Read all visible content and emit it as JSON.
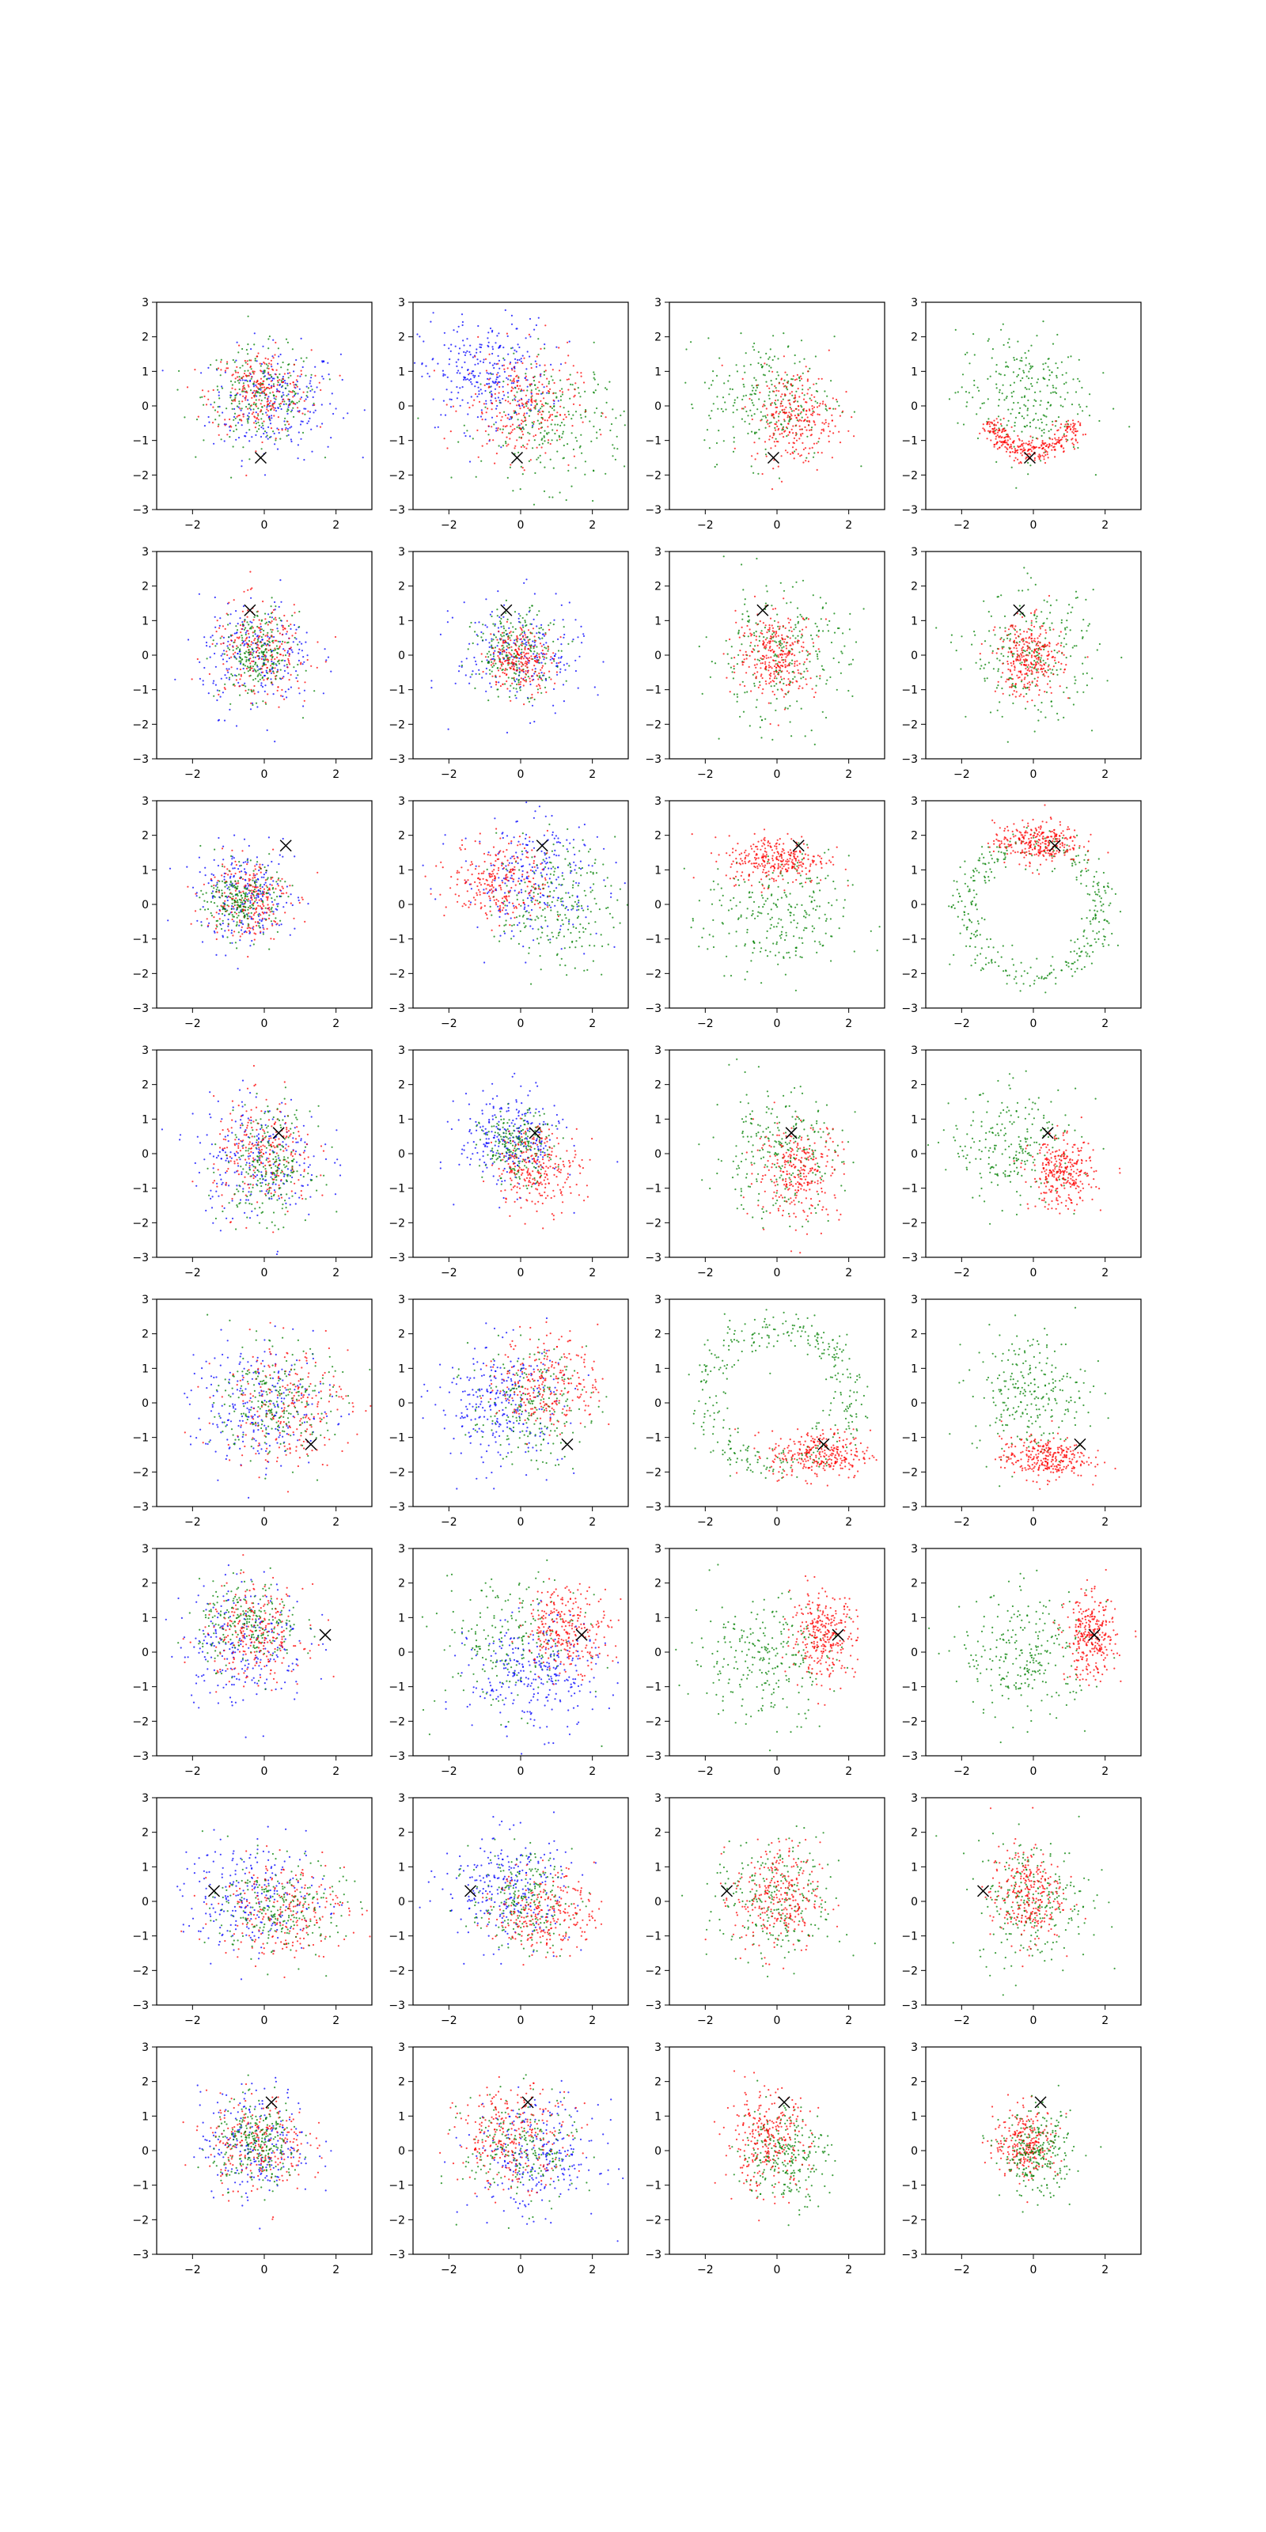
{
  "chart_data": {
    "type": "scatter",
    "rows": 8,
    "cols": 4,
    "xlim": [
      -3,
      3
    ],
    "ylim": [
      -3,
      3
    ],
    "xticks": [
      "−2",
      "0",
      "2"
    ],
    "yticks": [
      "3",
      "2",
      "1",
      "0",
      "−1",
      "−2",
      "−3"
    ],
    "grid": false,
    "legend": "none",
    "colors": {
      "blue": "#0000ff",
      "red": "#ff0000",
      "green": "#008000",
      "marker": "#000000"
    },
    "marker_symbol": "x",
    "marker_points": [
      [
        -0.1,
        -1.5
      ],
      [
        -0.4,
        1.3
      ],
      [
        0.6,
        1.7
      ],
      [
        0.4,
        0.6
      ],
      [
        1.3,
        -1.2
      ],
      [
        1.7,
        0.5
      ],
      [
        -1.4,
        0.3
      ],
      [
        0.2,
        1.4
      ]
    ],
    "panels": [
      {
        "clouds": [
          {
            "color": "blue",
            "shape": "disc",
            "cx": 0.3,
            "cy": 0.1,
            "sx": 0.9,
            "sy": 0.8,
            "n": 240
          },
          {
            "color": "green",
            "shape": "disc",
            "cx": -0.1,
            "cy": 0.3,
            "sx": 0.8,
            "sy": 0.7,
            "n": 240
          },
          {
            "color": "red",
            "shape": "disc",
            "cx": -0.1,
            "cy": 0.4,
            "sx": 0.7,
            "sy": 0.6,
            "n": 240
          }
        ]
      },
      {
        "clouds": [
          {
            "color": "blue",
            "shape": "disc",
            "cx": -1.0,
            "cy": 0.9,
            "sx": 0.9,
            "sy": 0.8,
            "n": 300
          },
          {
            "color": "green",
            "shape": "disc",
            "cx": 0.9,
            "cy": -0.5,
            "sx": 1.0,
            "sy": 0.9,
            "n": 260
          },
          {
            "color": "red",
            "shape": "disc",
            "cx": 0.0,
            "cy": 0.0,
            "sx": 0.8,
            "sy": 0.8,
            "n": 260
          }
        ]
      },
      {
        "clouds": [
          {
            "color": "green",
            "shape": "disc",
            "cx": -0.2,
            "cy": 0.2,
            "sx": 0.9,
            "sy": 0.9,
            "n": 260
          },
          {
            "color": "red",
            "shape": "disc",
            "cx": 0.5,
            "cy": -0.3,
            "sx": 0.6,
            "sy": 0.7,
            "n": 280
          }
        ]
      },
      {
        "clouds": [
          {
            "color": "green",
            "shape": "disc",
            "cx": -0.3,
            "cy": 0.3,
            "sx": 0.9,
            "sy": 0.9,
            "n": 260
          },
          {
            "color": "red",
            "shape": "arc",
            "cx": 0.0,
            "cy": 0.0,
            "r": 1.3,
            "a1": 200,
            "a2": 340,
            "w": 0.35,
            "n": 320
          }
        ]
      },
      {
        "clouds": [
          {
            "color": "blue",
            "shape": "disc",
            "cx": -0.2,
            "cy": 0.0,
            "sx": 0.8,
            "sy": 0.8,
            "n": 230
          },
          {
            "color": "red",
            "shape": "disc",
            "cx": -0.1,
            "cy": 0.1,
            "sx": 0.7,
            "sy": 0.7,
            "n": 230
          },
          {
            "color": "green",
            "shape": "disc",
            "cx": -0.2,
            "cy": 0.0,
            "sx": 0.5,
            "sy": 0.6,
            "n": 240
          }
        ]
      },
      {
        "clouds": [
          {
            "color": "blue",
            "shape": "disc",
            "cx": 0.0,
            "cy": 0.0,
            "sx": 0.9,
            "sy": 0.8,
            "n": 220
          },
          {
            "color": "green",
            "shape": "disc",
            "cx": -0.1,
            "cy": 0.1,
            "sx": 0.6,
            "sy": 0.6,
            "n": 240
          },
          {
            "color": "red",
            "shape": "disc",
            "cx": 0.0,
            "cy": -0.1,
            "sx": 0.45,
            "sy": 0.45,
            "n": 240
          }
        ]
      },
      {
        "clouds": [
          {
            "color": "green",
            "shape": "disc",
            "cx": 0.0,
            "cy": 0.0,
            "sx": 1.0,
            "sy": 1.0,
            "n": 260
          },
          {
            "color": "red",
            "shape": "disc",
            "cx": 0.0,
            "cy": 0.0,
            "sx": 0.55,
            "sy": 0.6,
            "n": 300
          }
        ]
      },
      {
        "clouds": [
          {
            "color": "green",
            "shape": "disc",
            "cx": 0.0,
            "cy": 0.0,
            "sx": 0.9,
            "sy": 0.9,
            "n": 260
          },
          {
            "color": "red",
            "shape": "disc",
            "cx": -0.1,
            "cy": -0.1,
            "sx": 0.45,
            "sy": 0.55,
            "n": 300
          }
        ]
      },
      {
        "clouds": [
          {
            "color": "blue",
            "shape": "disc",
            "cx": -0.5,
            "cy": 0.2,
            "sx": 0.7,
            "sy": 0.7,
            "n": 230
          },
          {
            "color": "red",
            "shape": "disc",
            "cx": -0.5,
            "cy": 0.2,
            "sx": 0.6,
            "sy": 0.6,
            "n": 230
          },
          {
            "color": "green",
            "shape": "disc",
            "cx": -0.6,
            "cy": 0.1,
            "sx": 0.5,
            "sy": 0.5,
            "n": 240
          }
        ]
      },
      {
        "clouds": [
          {
            "color": "blue",
            "shape": "disc",
            "cx": 0.3,
            "cy": 0.8,
            "sx": 1.0,
            "sy": 0.9,
            "n": 260
          },
          {
            "color": "green",
            "shape": "disc",
            "cx": 1.0,
            "cy": 0.0,
            "sx": 0.8,
            "sy": 0.9,
            "n": 240
          },
          {
            "color": "red",
            "shape": "disc",
            "cx": -0.6,
            "cy": 0.7,
            "sx": 0.7,
            "sy": 0.6,
            "n": 260
          }
        ]
      },
      {
        "clouds": [
          {
            "color": "green",
            "shape": "disc",
            "cx": 0.0,
            "cy": -0.4,
            "sx": 1.0,
            "sy": 0.9,
            "n": 260
          },
          {
            "color": "red",
            "shape": "disc",
            "cx": 0.0,
            "cy": 1.3,
            "sx": 0.7,
            "sy": 0.35,
            "n": 300
          }
        ]
      },
      {
        "clouds": [
          {
            "color": "green",
            "shape": "ring",
            "cx": 0.0,
            "cy": -0.2,
            "r": 1.9,
            "w": 0.5,
            "n": 360
          },
          {
            "color": "red",
            "shape": "disc",
            "cx": 0.1,
            "cy": 1.8,
            "sx": 0.6,
            "sy": 0.3,
            "n": 300
          }
        ]
      },
      {
        "clouds": [
          {
            "color": "blue",
            "shape": "disc",
            "cx": -0.2,
            "cy": -0.1,
            "sx": 0.9,
            "sy": 0.9,
            "n": 240
          },
          {
            "color": "red",
            "shape": "disc",
            "cx": 0.0,
            "cy": -0.1,
            "sx": 0.7,
            "sy": 0.8,
            "n": 240
          },
          {
            "color": "green",
            "shape": "disc",
            "cx": 0.1,
            "cy": -0.3,
            "sx": 0.6,
            "sy": 0.8,
            "n": 240
          }
        ]
      },
      {
        "clouds": [
          {
            "color": "blue",
            "shape": "disc",
            "cx": -0.3,
            "cy": 0.4,
            "sx": 0.7,
            "sy": 0.7,
            "n": 260
          },
          {
            "color": "green",
            "shape": "disc",
            "cx": -0.1,
            "cy": 0.2,
            "sx": 0.5,
            "sy": 0.5,
            "n": 220
          },
          {
            "color": "red",
            "shape": "disc",
            "cx": 0.5,
            "cy": -0.4,
            "sx": 0.6,
            "sy": 0.6,
            "n": 260
          }
        ]
      },
      {
        "clouds": [
          {
            "color": "green",
            "shape": "disc",
            "cx": 0.0,
            "cy": 0.0,
            "sx": 0.9,
            "sy": 0.9,
            "n": 260
          },
          {
            "color": "red",
            "shape": "disc",
            "cx": 0.6,
            "cy": -0.5,
            "sx": 0.6,
            "sy": 0.7,
            "n": 280
          }
        ]
      },
      {
        "clouds": [
          {
            "color": "green",
            "shape": "disc",
            "cx": -0.5,
            "cy": 0.2,
            "sx": 0.9,
            "sy": 0.8,
            "n": 240
          },
          {
            "color": "red",
            "shape": "disc",
            "cx": 0.8,
            "cy": -0.6,
            "sx": 0.45,
            "sy": 0.5,
            "n": 300
          }
        ]
      },
      {
        "clouds": [
          {
            "color": "blue",
            "shape": "disc",
            "cx": -0.1,
            "cy": -0.1,
            "sx": 1.0,
            "sy": 0.9,
            "n": 240
          },
          {
            "color": "red",
            "shape": "disc",
            "cx": 0.6,
            "cy": 0.0,
            "sx": 0.9,
            "sy": 0.9,
            "n": 240
          },
          {
            "color": "green",
            "shape": "disc",
            "cx": 0.3,
            "cy": 0.0,
            "sx": 0.8,
            "sy": 0.8,
            "n": 240
          }
        ]
      },
      {
        "clouds": [
          {
            "color": "blue",
            "shape": "disc",
            "cx": -0.6,
            "cy": 0.0,
            "sx": 0.9,
            "sy": 0.9,
            "n": 280
          },
          {
            "color": "green",
            "shape": "disc",
            "cx": 0.2,
            "cy": -0.1,
            "sx": 0.8,
            "sy": 0.8,
            "n": 220
          },
          {
            "color": "red",
            "shape": "disc",
            "cx": 0.8,
            "cy": 0.6,
            "sx": 0.7,
            "sy": 0.7,
            "n": 260
          }
        ]
      },
      {
        "clouds": [
          {
            "color": "green",
            "shape": "ring",
            "cx": 0.0,
            "cy": 0.2,
            "r": 2.0,
            "w": 0.55,
            "n": 360
          },
          {
            "color": "red",
            "shape": "disc",
            "cx": 1.2,
            "cy": -1.5,
            "sx": 0.7,
            "sy": 0.35,
            "n": 300
          }
        ]
      },
      {
        "clouds": [
          {
            "color": "green",
            "shape": "disc",
            "cx": -0.1,
            "cy": 0.3,
            "sx": 0.8,
            "sy": 0.9,
            "n": 260
          },
          {
            "color": "red",
            "shape": "disc",
            "cx": 0.3,
            "cy": -1.6,
            "sx": 0.6,
            "sy": 0.3,
            "n": 300
          }
        ]
      },
      {
        "clouds": [
          {
            "color": "blue",
            "shape": "disc",
            "cx": -0.6,
            "cy": 0.3,
            "sx": 0.9,
            "sy": 0.9,
            "n": 240
          },
          {
            "color": "green",
            "shape": "disc",
            "cx": -0.4,
            "cy": 0.8,
            "sx": 0.7,
            "sy": 0.6,
            "n": 240
          },
          {
            "color": "red",
            "shape": "disc",
            "cx": -0.3,
            "cy": 0.5,
            "sx": 0.7,
            "sy": 0.7,
            "n": 240
          }
        ]
      },
      {
        "clouds": [
          {
            "color": "green",
            "shape": "disc",
            "cx": -0.3,
            "cy": 0.3,
            "sx": 1.0,
            "sy": 1.0,
            "n": 220
          },
          {
            "color": "blue",
            "shape": "disc",
            "cx": 0.4,
            "cy": -0.7,
            "sx": 0.9,
            "sy": 0.8,
            "n": 280
          },
          {
            "color": "red",
            "shape": "disc",
            "cx": 1.3,
            "cy": 0.7,
            "sx": 0.6,
            "sy": 0.6,
            "n": 280
          }
        ]
      },
      {
        "clouds": [
          {
            "color": "green",
            "shape": "disc",
            "cx": -0.4,
            "cy": -0.2,
            "sx": 1.0,
            "sy": 0.9,
            "n": 260
          },
          {
            "color": "red",
            "shape": "disc",
            "cx": 1.3,
            "cy": 0.5,
            "sx": 0.45,
            "sy": 0.6,
            "n": 300
          }
        ]
      },
      {
        "clouds": [
          {
            "color": "green",
            "shape": "disc",
            "cx": -0.2,
            "cy": -0.1,
            "sx": 0.9,
            "sy": 0.9,
            "n": 260
          },
          {
            "color": "red",
            "shape": "disc",
            "cx": 1.6,
            "cy": 0.4,
            "sx": 0.35,
            "sy": 0.6,
            "n": 300
          }
        ]
      },
      {
        "clouds": [
          {
            "color": "blue",
            "shape": "disc",
            "cx": -0.3,
            "cy": 0.1,
            "sx": 1.0,
            "sy": 0.8,
            "n": 240
          },
          {
            "color": "red",
            "shape": "disc",
            "cx": 0.5,
            "cy": -0.2,
            "sx": 0.9,
            "sy": 0.7,
            "n": 240
          },
          {
            "color": "green",
            "shape": "disc",
            "cx": 0.4,
            "cy": -0.2,
            "sx": 0.9,
            "sy": 0.7,
            "n": 240
          }
        ]
      },
      {
        "clouds": [
          {
            "color": "blue",
            "shape": "disc",
            "cx": -0.4,
            "cy": 0.4,
            "sx": 0.9,
            "sy": 0.8,
            "n": 260
          },
          {
            "color": "green",
            "shape": "disc",
            "cx": 0.0,
            "cy": 0.0,
            "sx": 0.7,
            "sy": 0.7,
            "n": 220
          },
          {
            "color": "red",
            "shape": "disc",
            "cx": 0.7,
            "cy": -0.3,
            "sx": 0.7,
            "sy": 0.6,
            "n": 260
          }
        ]
      },
      {
        "clouds": [
          {
            "color": "green",
            "shape": "disc",
            "cx": 0.0,
            "cy": 0.0,
            "sx": 0.9,
            "sy": 0.9,
            "n": 260
          },
          {
            "color": "red",
            "shape": "disc",
            "cx": 0.0,
            "cy": 0.1,
            "sx": 0.6,
            "sy": 0.8,
            "n": 280
          }
        ]
      },
      {
        "clouds": [
          {
            "color": "green",
            "shape": "disc",
            "cx": 0.0,
            "cy": 0.0,
            "sx": 0.8,
            "sy": 0.9,
            "n": 260
          },
          {
            "color": "red",
            "shape": "disc",
            "cx": -0.2,
            "cy": 0.2,
            "sx": 0.5,
            "sy": 0.7,
            "n": 280
          }
        ]
      },
      {
        "clouds": [
          {
            "color": "blue",
            "shape": "disc",
            "cx": -0.2,
            "cy": 0.2,
            "sx": 0.8,
            "sy": 0.8,
            "n": 220
          },
          {
            "color": "red",
            "shape": "disc",
            "cx": -0.2,
            "cy": 0.2,
            "sx": 0.7,
            "sy": 0.7,
            "n": 240
          },
          {
            "color": "green",
            "shape": "disc",
            "cx": -0.2,
            "cy": 0.2,
            "sx": 0.6,
            "sy": 0.6,
            "n": 260
          }
        ]
      },
      {
        "clouds": [
          {
            "color": "blue",
            "shape": "disc",
            "cx": 0.4,
            "cy": -0.2,
            "sx": 0.9,
            "sy": 0.8,
            "n": 260
          },
          {
            "color": "green",
            "shape": "disc",
            "cx": 0.0,
            "cy": 0.0,
            "sx": 0.8,
            "sy": 0.8,
            "n": 220
          },
          {
            "color": "red",
            "shape": "disc",
            "cx": -0.2,
            "cy": 0.4,
            "sx": 0.8,
            "sy": 0.7,
            "n": 280
          }
        ]
      },
      {
        "clouds": [
          {
            "color": "green",
            "shape": "disc",
            "cx": 0.2,
            "cy": -0.1,
            "sx": 0.6,
            "sy": 0.7,
            "n": 260
          },
          {
            "color": "red",
            "shape": "disc",
            "cx": -0.3,
            "cy": 0.3,
            "sx": 0.6,
            "sy": 0.7,
            "n": 280
          }
        ]
      },
      {
        "clouds": [
          {
            "color": "red",
            "shape": "disc",
            "cx": -0.2,
            "cy": 0.2,
            "sx": 0.45,
            "sy": 0.5,
            "n": 260
          },
          {
            "color": "green",
            "shape": "disc",
            "cx": 0.1,
            "cy": -0.1,
            "sx": 0.5,
            "sy": 0.6,
            "n": 260
          }
        ]
      }
    ]
  }
}
